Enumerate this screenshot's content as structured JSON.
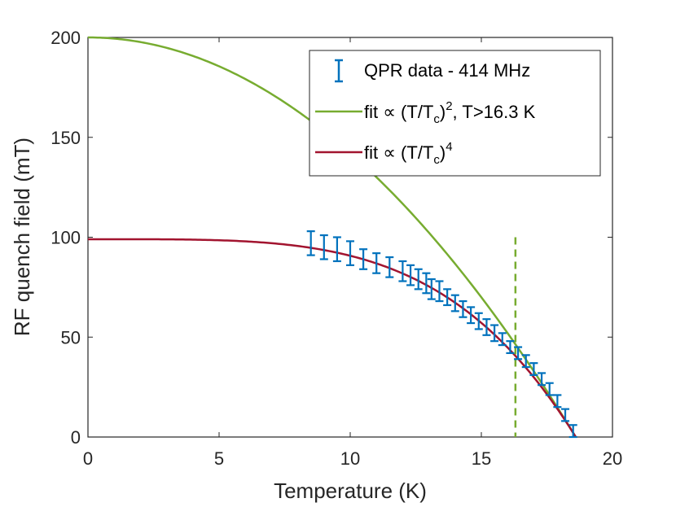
{
  "chart_data": {
    "type": "line",
    "title": "",
    "xlabel": "Temperature (K)",
    "ylabel": "RF quench field (mT)",
    "xlim": [
      0,
      20
    ],
    "ylim": [
      0,
      200
    ],
    "xticks": [
      "0",
      "5",
      "10",
      "15",
      "20"
    ],
    "yticks": [
      "0",
      "50",
      "100",
      "150",
      "200"
    ],
    "grid": false,
    "legend_position": "top-right",
    "legend": {
      "data_label": "QPR data - 414 MHz",
      "fit2_label": "fit ∝ (T/T_c)^2, T>16.3 K",
      "fit4_label": "fit ∝ (T/T_c)^4"
    },
    "colors": {
      "data": "#0072BD",
      "fit2": "#77AC30",
      "fit4": "#A2142F",
      "threshold": "#77AC30"
    },
    "threshold_x": 16.3,
    "threshold_ymax": 100,
    "series": [
      {
        "name": "QPR data - 414 MHz",
        "kind": "errorbar",
        "x": [
          8.5,
          9.0,
          9.5,
          10.0,
          10.5,
          11.0,
          11.5,
          12.0,
          12.3,
          12.6,
          12.9,
          13.1,
          13.4,
          13.7,
          14.0,
          14.3,
          14.6,
          14.9,
          15.2,
          15.5,
          15.8,
          16.1,
          16.4,
          16.7,
          17.0,
          17.3,
          17.6,
          17.9,
          18.2,
          18.5
        ],
        "y": [
          97,
          95,
          94,
          92,
          89,
          87,
          85,
          83,
          81,
          79,
          77,
          74,
          73,
          70,
          67,
          64,
          61,
          58,
          55,
          52,
          49,
          45,
          42,
          38,
          34,
          29,
          24,
          18,
          11,
          3
        ],
        "err": [
          6,
          6,
          6,
          6,
          5,
          5,
          5,
          5,
          5,
          5,
          5,
          5,
          5,
          4,
          4,
          4,
          4,
          4,
          4,
          4,
          3,
          3,
          3,
          3,
          3,
          3,
          3,
          3,
          3,
          3
        ]
      },
      {
        "name": "fit ∝ (T/T_c)^2, T>16.3 K",
        "kind": "curve",
        "B0": 200,
        "Tc": 18.6,
        "power": 2
      },
      {
        "name": "fit ∝ (T/T_c)^4",
        "kind": "curve",
        "B0": 99,
        "Tc": 18.6,
        "power": 4
      }
    ]
  }
}
